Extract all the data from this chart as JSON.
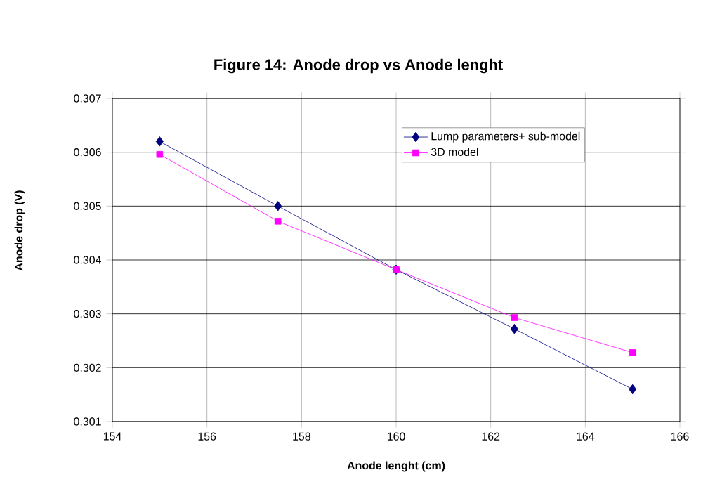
{
  "chart_data": {
    "type": "line",
    "title": "Figure 14: Anode drop vs Anode lenght",
    "xlabel": "Anode lenght (cm)",
    "ylabel": "Anode drop (V)",
    "x": [
      155,
      157.5,
      160,
      162.5,
      165
    ],
    "series": [
      {
        "name": "Lump parameters+ sub-model",
        "color": "#000080",
        "marker": "diamond",
        "values": [
          0.3062,
          0.305,
          0.30382,
          0.30272,
          0.3016
        ]
      },
      {
        "name": "3D model",
        "color": "#ff00ff",
        "marker": "square",
        "values": [
          0.30596,
          0.30472,
          0.30382,
          0.30293,
          0.30228
        ]
      }
    ],
    "xlim": [
      154,
      166
    ],
    "xticks": [
      154,
      156,
      158,
      160,
      162,
      164,
      166
    ],
    "ylim": [
      0.301,
      0.307
    ],
    "yticks": [
      {
        "value": 0.301,
        "label": "0.301"
      },
      {
        "value": 0.302,
        "label": "0.302"
      },
      {
        "value": 0.303,
        "label": "0.303"
      },
      {
        "value": 0.304,
        "label": "0.304"
      },
      {
        "value": 0.305,
        "label": "0.305"
      },
      {
        "value": 0.306,
        "label": "0.306"
      },
      {
        "value": 0.307,
        "label": "0.307"
      }
    ],
    "grid": true,
    "legend": "top right",
    "line_style": "solid"
  }
}
